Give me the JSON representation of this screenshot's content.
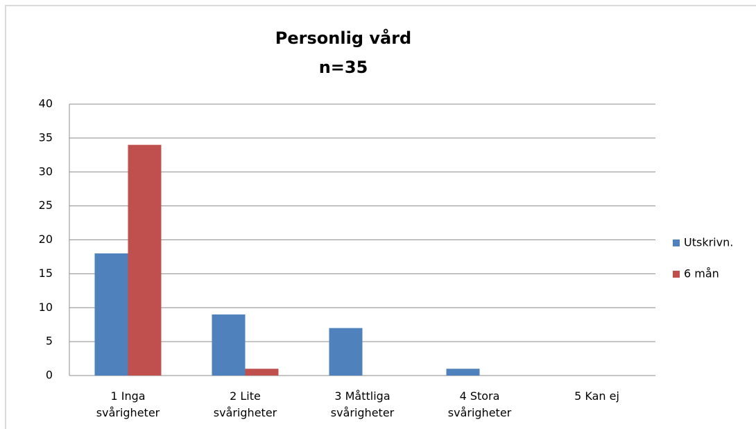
{
  "chart_data": {
    "type": "bar",
    "title": "Personlig vård",
    "subtitle": "n=35",
    "categories": [
      "1 Inga\nsvårigheter",
      "2 Lite\nsvårigheter",
      "3 Måttliga\nsvårigheter",
      "4 Stora\nsvårigheter",
      "5 Kan ej"
    ],
    "series": [
      {
        "name": "Utskrivn.",
        "color": "#4f81bd",
        "values": [
          18,
          9,
          7,
          1,
          0
        ]
      },
      {
        "name": "6 mån",
        "color": "#c0504d",
        "values": [
          34,
          1,
          0,
          0,
          0
        ]
      }
    ],
    "ylim": [
      0,
      40
    ],
    "yticks": [
      0,
      5,
      10,
      15,
      20,
      25,
      30,
      35,
      40
    ],
    "grid": true,
    "legend": "right"
  }
}
